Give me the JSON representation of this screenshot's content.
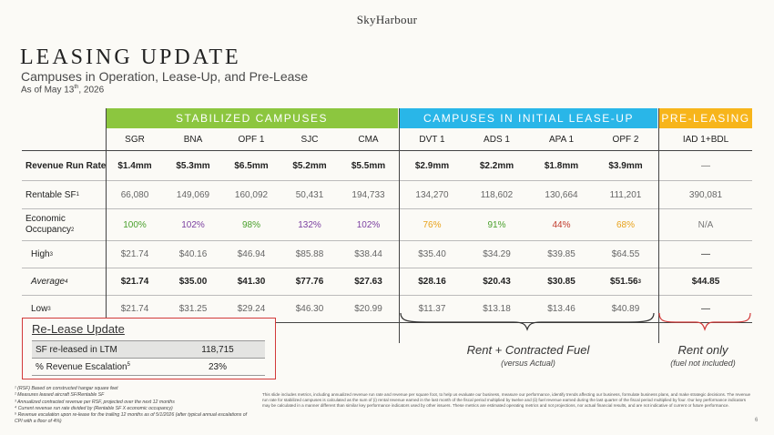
{
  "brand": "SkyHarbour",
  "title": "LEASING UPDATE",
  "subtitle": "Campuses in Operation, Lease-Up, and Pre-Lease",
  "as_of_prefix": "As of May 13",
  "as_of_sup": "th",
  "as_of_suffix": ", 2026",
  "groups": {
    "stabilized": {
      "label": "STABILIZED CAMPUSES",
      "color": "#8cc63f"
    },
    "initial": {
      "label": "CAMPUSES IN INITIAL LEASE-UP",
      "color": "#29b6e8"
    },
    "prelease": {
      "label": "PRE-LEASING",
      "color": "#f7b51b"
    }
  },
  "columns": [
    "SGR",
    "BNA",
    "OPF 1",
    "SJC",
    "CMA",
    "DVT 1",
    "ADS 1",
    "APA 1",
    "OPF 2",
    "IAD 1+BDL"
  ],
  "rows": {
    "run_rate": {
      "label": "Revenue Run Rate",
      "values": [
        "$1.4mm",
        "$5.3mm",
        "$6.5mm",
        "$5.2mm",
        "$5.5mm",
        "$2.9mm",
        "$2.2mm",
        "$1.8mm",
        "$3.9mm",
        "—"
      ]
    },
    "rentable": {
      "label": "Rentable SF",
      "sup": "1",
      "values": [
        "66,080",
        "149,069",
        "160,092",
        "50,431",
        "194,733",
        "134,270",
        "118,602",
        "130,664",
        "111,201",
        "390,081"
      ]
    },
    "occupancy": {
      "label_line1": "Economic",
      "label_line2": "Occupancy",
      "sup": "2",
      "values": [
        "100%",
        "102%",
        "98%",
        "132%",
        "102%",
        "76%",
        "91%",
        "44%",
        "68%",
        "N/A"
      ],
      "colors": [
        "#4aa02c",
        "#7b3fa0",
        "#4aa02c",
        "#7b3fa0",
        "#7b3fa0",
        "#e8a21b",
        "#4aa02c",
        "#c0392b",
        "#e8a21b",
        "#777777"
      ]
    },
    "high": {
      "label": "High",
      "sup": "3",
      "values": [
        "$21.74",
        "$40.16",
        "$46.94",
        "$85.88",
        "$38.44",
        "$35.40",
        "$34.29",
        "$39.85",
        "$64.55",
        "—"
      ]
    },
    "average": {
      "label": "Average",
      "sup": "4",
      "values": [
        "$21.74",
        "$35.00",
        "$41.30",
        "$77.76",
        "$27.63",
        "$28.16",
        "$20.43",
        "$30.85",
        "$51.56",
        "$44.85"
      ],
      "opf2_sup": "3"
    },
    "low": {
      "label": "Low",
      "sup": "3",
      "values": [
        "$21.74",
        "$31.25",
        "$29.24",
        "$46.30",
        "$20.99",
        "$11.37",
        "$13.18",
        "$13.46",
        "$40.89",
        "—"
      ]
    }
  },
  "rent_fuel": "Rent + Contracted Fuel",
  "rent_fuel_sub": "(versus Actual)",
  "rent_only": "Rent only",
  "rent_only_sub": "(fuel not included)",
  "release": {
    "title": "Re-Lease Update",
    "row1_label": "SF re-leased in LTM",
    "row1_value": "118,715",
    "row2_label": "% Revenue Escalation",
    "row2_sup": "5",
    "row2_value": "23%"
  },
  "footnotes": [
    "¹ (RSF) Based on constructed hangar square feet",
    "² Measures leased aircraft SF/Rentable SF",
    "³ Annualized contracted revenue per RSF, projected over the next 12 months",
    "⁴ Current revenue run rate divided by (Rentable SF X economic occupancy)",
    "⁵ Revenue escalation upon re-lease for the trailing 12 months as of 5/1/2026 (after typical annual escalations of CPI with a floor of 4%)"
  ],
  "disclaimer": "This slide includes metrics, including annualized revenue run rate and revenue per square foot, to help us evaluate our business, measure our performance, identify trends affecting our business, formulate business plans, and make strategic decisions. The revenue run rate for stabilized campuses is calculated as the sum of (i) rental revenue earned in the last month of the fiscal period multiplied by twelve and (ii) fuel revenue earned during the last quarter of the fiscal period multiplied by four. Our key performance indicators may be calculated in a manner different than similar key performance indicators used by other issuers. These metrics are estimated operating metrics and not projections, nor actual financial results, and are not indicative of current or future performance.",
  "page_number": "6"
}
